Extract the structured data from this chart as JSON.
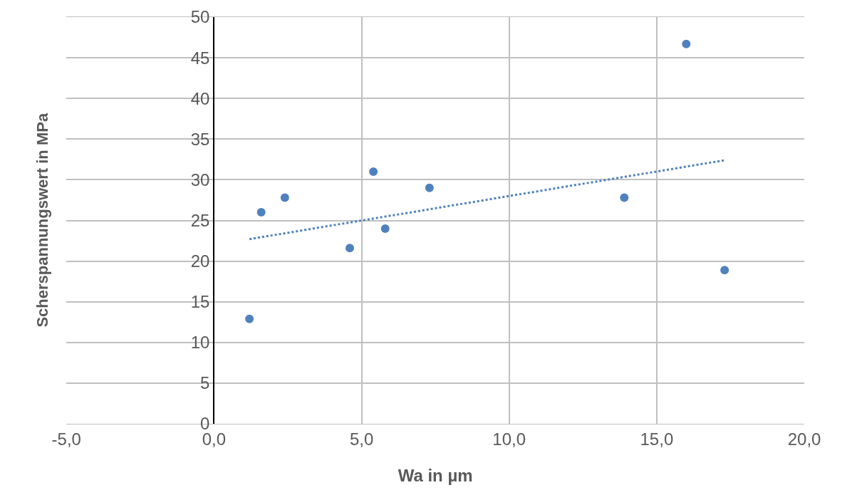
{
  "chart_data": {
    "type": "scatter",
    "xlabel": "Wa in µm",
    "ylabel": "Scherspannungswert in MPa",
    "series": [
      {
        "color": "#4f81bd",
        "x": [
          1.2,
          1.6,
          2.4,
          4.6,
          5.4,
          5.8,
          7.3,
          13.9,
          16.0,
          17.3
        ],
        "values": [
          12.9,
          26.0,
          27.8,
          21.6,
          31.0,
          24.0,
          29.0,
          27.8,
          46.7,
          18.9
        ],
        "marker": "circle"
      },
      {
        "type": "line",
        "color": "#4f81bd",
        "x": [
          1.2,
          17.3
        ],
        "values": [
          22.7,
          32.4
        ],
        "line_style": "dotted",
        "marker": "none"
      }
    ],
    "xlim": [
      -5,
      20
    ],
    "xticks": [
      {
        "value": -5,
        "label": "-5,0"
      },
      {
        "value": 0,
        "label": "0,0"
      },
      {
        "value": 5,
        "label": "5,0"
      },
      {
        "value": 10,
        "label": "10,0"
      },
      {
        "value": 15,
        "label": "15,0"
      },
      {
        "value": 20,
        "label": "20,0"
      }
    ],
    "ylim": [
      0,
      50
    ],
    "yticks": [
      0,
      5,
      10,
      15,
      20,
      25,
      30,
      35,
      40,
      45,
      50
    ],
    "grid": true
  }
}
